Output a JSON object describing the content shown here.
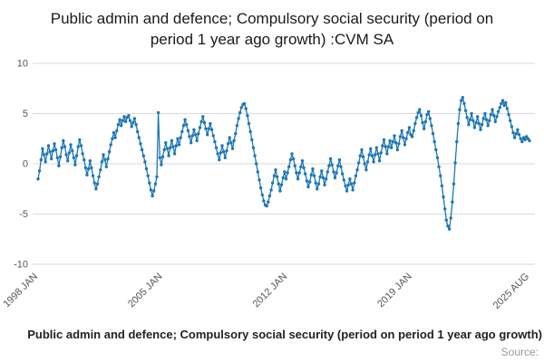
{
  "title": "Public admin and defence; Compulsory social security (period on period 1 year ago growth) :CVM SA",
  "footer": {
    "caption": "Public admin and defence; Compulsory social security (period on period 1 year ago growth)",
    "source": "Source:"
  },
  "chart_data": {
    "type": "line",
    "title": "Public admin and defence; Compulsory social security (period on period 1 year ago growth) :CVM SA",
    "xlabel": "",
    "ylabel": "",
    "x_start": "1998-01",
    "x_end": "2025-08",
    "frequency": "monthly",
    "ylim": [
      -10,
      10
    ],
    "yticks": [
      10,
      5,
      0,
      -5,
      -10
    ],
    "xticks": [
      {
        "label": "1998 JAN",
        "index": 0
      },
      {
        "label": "2005 JAN",
        "index": 84
      },
      {
        "label": "2012 JAN",
        "index": 168
      },
      {
        "label": "2019 JAN",
        "index": 252
      },
      {
        "label": "2025 AUG",
        "index": 331
      }
    ],
    "grid": "horizontal-only",
    "legend": "none",
    "marker": "circle",
    "line_color": "#1f77b4",
    "grid_color": "#d9d9d9",
    "values": [
      -1.5,
      -0.7,
      0.4,
      1.5,
      0.9,
      0.2,
      1.0,
      1.8,
      1.2,
      0.5,
      1.3,
      2.0,
      1.4,
      0.6,
      -0.2,
      0.7,
      1.6,
      2.3,
      1.7,
      0.9,
      0.3,
      1.1,
      1.9,
      1.3,
      0.6,
      -0.1,
      0.8,
      1.7,
      2.4,
      1.8,
      1.0,
      0.4,
      -0.4,
      -1.1,
      -0.5,
      0.3,
      -0.4,
      -1.2,
      -1.9,
      -2.5,
      -2.0,
      -1.3,
      -0.6,
      0.2,
      0.9,
      0.4,
      -0.3,
      0.5,
      1.2,
      1.9,
      2.5,
      3.1,
      2.6,
      3.3,
      3.9,
      4.4,
      3.8,
      4.3,
      4.7,
      4.2,
      4.6,
      4.8,
      4.3,
      3.7,
      4.1,
      4.5,
      3.9,
      3.2,
      2.6,
      2.0,
      1.4,
      0.8,
      0.2,
      -0.5,
      -1.2,
      -1.9,
      -2.6,
      -3.2,
      -2.7,
      -2.0,
      -1.3,
      5.1,
      0.6,
      -0.1,
      0.7,
      1.4,
      2.1,
      1.5,
      0.8,
      1.6,
      2.3,
      1.7,
      1.0,
      1.8,
      2.5,
      1.9,
      2.6,
      3.2,
      3.8,
      4.4,
      3.9,
      3.3,
      2.7,
      2.1,
      2.8,
      3.4,
      2.9,
      2.3,
      3.0,
      3.6,
      4.2,
      4.7,
      4.1,
      3.5,
      2.9,
      3.5,
      4.0,
      3.4,
      2.8,
      2.2,
      1.6,
      1.0,
      0.4,
      1.1,
      1.8,
      1.2,
      0.6,
      1.3,
      2.0,
      2.6,
      2.1,
      1.5,
      2.3,
      3.0,
      3.8,
      4.5,
      5.1,
      5.6,
      5.9,
      6.0,
      5.5,
      4.8,
      4.0,
      3.2,
      2.4,
      1.6,
      0.8,
      0.0,
      -0.8,
      -1.6,
      -2.4,
      -3.1,
      -3.7,
      -4.1,
      -4.2,
      -3.8,
      -3.2,
      -2.6,
      -1.9,
      -1.2,
      -0.6,
      -1.3,
      -2.0,
      -2.7,
      -2.1,
      -1.4,
      -0.8,
      -1.5,
      -0.9,
      -0.3,
      0.4,
      1.0,
      0.5,
      -0.2,
      -0.9,
      -1.5,
      -0.9,
      -0.3,
      0.3,
      -0.4,
      -1.0,
      -1.7,
      -2.3,
      -1.8,
      -1.1,
      -0.5,
      -1.2,
      -1.9,
      -2.5,
      -2.0,
      -1.3,
      -0.7,
      -1.4,
      -2.1,
      -1.5,
      -0.8,
      -0.2,
      0.5,
      -0.1,
      -0.8,
      -1.4,
      -0.9,
      -0.2,
      0.4,
      -0.3,
      -1.0,
      -1.6,
      -2.2,
      -2.7,
      -2.1,
      -1.5,
      -2.0,
      -2.6,
      -1.9,
      -1.2,
      -0.6,
      0.1,
      0.8,
      1.4,
      0.7,
      0.0,
      -0.6,
      0.2,
      0.9,
      1.5,
      0.8,
      0.2,
      0.9,
      1.6,
      1.0,
      0.3,
      1.1,
      1.8,
      2.4,
      1.7,
      1.0,
      1.7,
      2.3,
      1.6,
      2.2,
      2.8,
      2.1,
      1.4,
      2.0,
      2.7,
      3.3,
      2.6,
      1.9,
      2.5,
      3.1,
      3.6,
      2.9,
      2.7,
      3.3,
      4.0,
      4.6,
      5.1,
      5.4,
      4.8,
      4.1,
      3.5,
      4.2,
      4.9,
      5.2,
      4.5,
      3.8,
      3.0,
      2.2,
      1.4,
      0.6,
      -0.3,
      -1.2,
      -2.2,
      -3.3,
      -4.5,
      -5.6,
      -6.2,
      -6.5,
      -5.4,
      -3.8,
      -2.0,
      0.1,
      2.2,
      4.0,
      5.4,
      6.3,
      6.6,
      6.0,
      5.3,
      4.6,
      3.9,
      4.4,
      5.0,
      4.3,
      3.6,
      4.1,
      4.7,
      4.0,
      3.4,
      3.9,
      4.5,
      5.0,
      4.4,
      3.8,
      4.3,
      4.9,
      5.4,
      4.8,
      4.2,
      4.7,
      5.2,
      5.6,
      6.0,
      6.3,
      5.8,
      6.1,
      5.5,
      4.9,
      4.3,
      3.7,
      3.1,
      2.6,
      3.0,
      3.4,
      2.9,
      2.5,
      2.2,
      2.6,
      2.4,
      2.7,
      2.5,
      2.3
    ]
  }
}
